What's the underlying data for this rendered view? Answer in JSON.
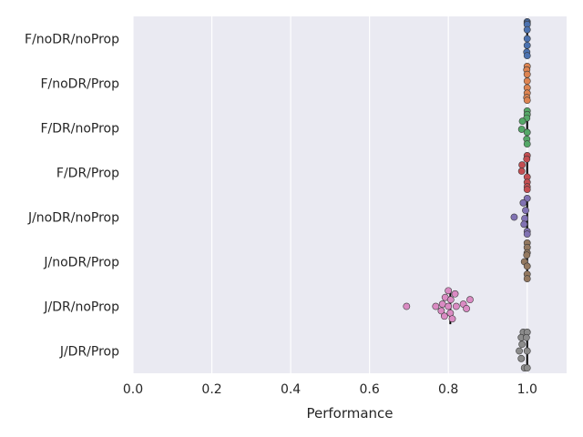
{
  "chart_data": {
    "type": "scatter",
    "subtype": "strip-with-median",
    "title": "",
    "xlabel": "Performance",
    "ylabel": "",
    "xlim": [
      0.0,
      1.1
    ],
    "xticks": [
      0.0,
      0.2,
      0.4,
      0.6,
      0.8,
      1.0
    ],
    "xtick_labels": [
      "0.0",
      "0.2",
      "0.4",
      "0.6",
      "0.8",
      "1.0"
    ],
    "grid": true,
    "categories": [
      "F/noDR/noProp",
      "F/noDR/Prop",
      "F/DR/noProp",
      "F/DR/Prop",
      "J/noDR/noProp",
      "J/noDR/Prop",
      "J/DR/noProp",
      "J/DR/Prop"
    ],
    "colors": [
      "#4c72b0",
      "#dd8452",
      "#55a868",
      "#c44e52",
      "#8172b3",
      "#937860",
      "#da8bc3",
      "#8c8c8c"
    ],
    "series": [
      {
        "name": "F/noDR/noProp",
        "median": 1.0,
        "points": [
          {
            "x": 1.0,
            "jitter": -0.38
          },
          {
            "x": 1.0,
            "jitter": -0.35
          },
          {
            "x": 1.0,
            "jitter": -0.32
          },
          {
            "x": 1.0,
            "jitter": -0.2
          },
          {
            "x": 1.0,
            "jitter": 0.0
          },
          {
            "x": 1.0,
            "jitter": 0.15
          },
          {
            "x": 0.999,
            "jitter": 0.3
          },
          {
            "x": 1.0,
            "jitter": 0.38
          }
        ]
      },
      {
        "name": "F/noDR/Prop",
        "median": 1.0,
        "points": [
          {
            "x": 1.0,
            "jitter": -0.38
          },
          {
            "x": 0.999,
            "jitter": -0.3
          },
          {
            "x": 1.0,
            "jitter": -0.2
          },
          {
            "x": 1.0,
            "jitter": -0.05
          },
          {
            "x": 1.0,
            "jitter": 0.1
          },
          {
            "x": 1.0,
            "jitter": 0.22
          },
          {
            "x": 0.999,
            "jitter": 0.32
          },
          {
            "x": 1.0,
            "jitter": 0.38
          }
        ]
      },
      {
        "name": "F/DR/noProp",
        "median": 1.0,
        "points": [
          {
            "x": 1.0,
            "jitter": -0.38
          },
          {
            "x": 1.0,
            "jitter": -0.3
          },
          {
            "x": 0.999,
            "jitter": -0.22
          },
          {
            "x": 0.988,
            "jitter": -0.15
          },
          {
            "x": 0.986,
            "jitter": 0.03
          },
          {
            "x": 1.0,
            "jitter": 0.1
          },
          {
            "x": 0.999,
            "jitter": 0.25
          },
          {
            "x": 1.0,
            "jitter": 0.36
          }
        ]
      },
      {
        "name": "F/DR/Prop",
        "median": 1.0,
        "points": [
          {
            "x": 1.0,
            "jitter": -0.38
          },
          {
            "x": 0.999,
            "jitter": -0.3
          },
          {
            "x": 0.987,
            "jitter": -0.17
          },
          {
            "x": 0.986,
            "jitter": -0.03
          },
          {
            "x": 1.0,
            "jitter": 0.1
          },
          {
            "x": 1.0,
            "jitter": 0.22
          },
          {
            "x": 1.0,
            "jitter": 0.32
          },
          {
            "x": 1.0,
            "jitter": 0.38
          }
        ]
      },
      {
        "name": "J/noDR/noProp",
        "median": 1.0,
        "points": [
          {
            "x": 1.0,
            "jitter": -0.42
          },
          {
            "x": 0.99,
            "jitter": -0.32
          },
          {
            "x": 0.996,
            "jitter": -0.15
          },
          {
            "x": 0.967,
            "jitter": 0.0
          },
          {
            "x": 0.994,
            "jitter": 0.03
          },
          {
            "x": 0.992,
            "jitter": 0.16
          },
          {
            "x": 1.0,
            "jitter": 0.32
          },
          {
            "x": 1.0,
            "jitter": 0.38
          }
        ]
      },
      {
        "name": "J/noDR/Prop",
        "median": 1.0,
        "points": [
          {
            "x": 1.0,
            "jitter": -0.42
          },
          {
            "x": 1.0,
            "jitter": -0.32
          },
          {
            "x": 1.0,
            "jitter": -0.2
          },
          {
            "x": 0.999,
            "jitter": -0.15
          },
          {
            "x": 0.993,
            "jitter": 0.0
          },
          {
            "x": 1.0,
            "jitter": 0.1
          },
          {
            "x": 1.0,
            "jitter": 0.28
          },
          {
            "x": 1.0,
            "jitter": 0.38
          }
        ]
      },
      {
        "name": "J/DR/noProp",
        "median": 0.805,
        "points": [
          {
            "x": 0.8,
            "jitter": -0.35
          },
          {
            "x": 0.817,
            "jitter": -0.28
          },
          {
            "x": 0.792,
            "jitter": -0.2
          },
          {
            "x": 0.806,
            "jitter": -0.15
          },
          {
            "x": 0.855,
            "jitter": -0.15
          },
          {
            "x": 0.785,
            "jitter": -0.05
          },
          {
            "x": 0.838,
            "jitter": -0.05
          },
          {
            "x": 0.694,
            "jitter": 0.0
          },
          {
            "x": 0.768,
            "jitter": 0.0
          },
          {
            "x": 0.8,
            "jitter": 0.0
          },
          {
            "x": 0.82,
            "jitter": 0.0
          },
          {
            "x": 0.782,
            "jitter": 0.1
          },
          {
            "x": 0.846,
            "jitter": 0.05
          },
          {
            "x": 0.805,
            "jitter": 0.15
          },
          {
            "x": 0.79,
            "jitter": 0.22
          },
          {
            "x": 0.81,
            "jitter": 0.28
          }
        ]
      },
      {
        "name": "J/DR/Prop",
        "median": 1.0,
        "points": [
          {
            "x": 0.99,
            "jitter": -0.42
          },
          {
            "x": 1.0,
            "jitter": -0.42
          },
          {
            "x": 0.985,
            "jitter": -0.3
          },
          {
            "x": 0.998,
            "jitter": -0.3
          },
          {
            "x": 0.987,
            "jitter": -0.15
          },
          {
            "x": 0.98,
            "jitter": 0.0
          },
          {
            "x": 1.0,
            "jitter": 0.0
          },
          {
            "x": 0.985,
            "jitter": 0.17
          },
          {
            "x": 0.993,
            "jitter": 0.38
          },
          {
            "x": 1.0,
            "jitter": 0.38
          }
        ]
      }
    ]
  }
}
